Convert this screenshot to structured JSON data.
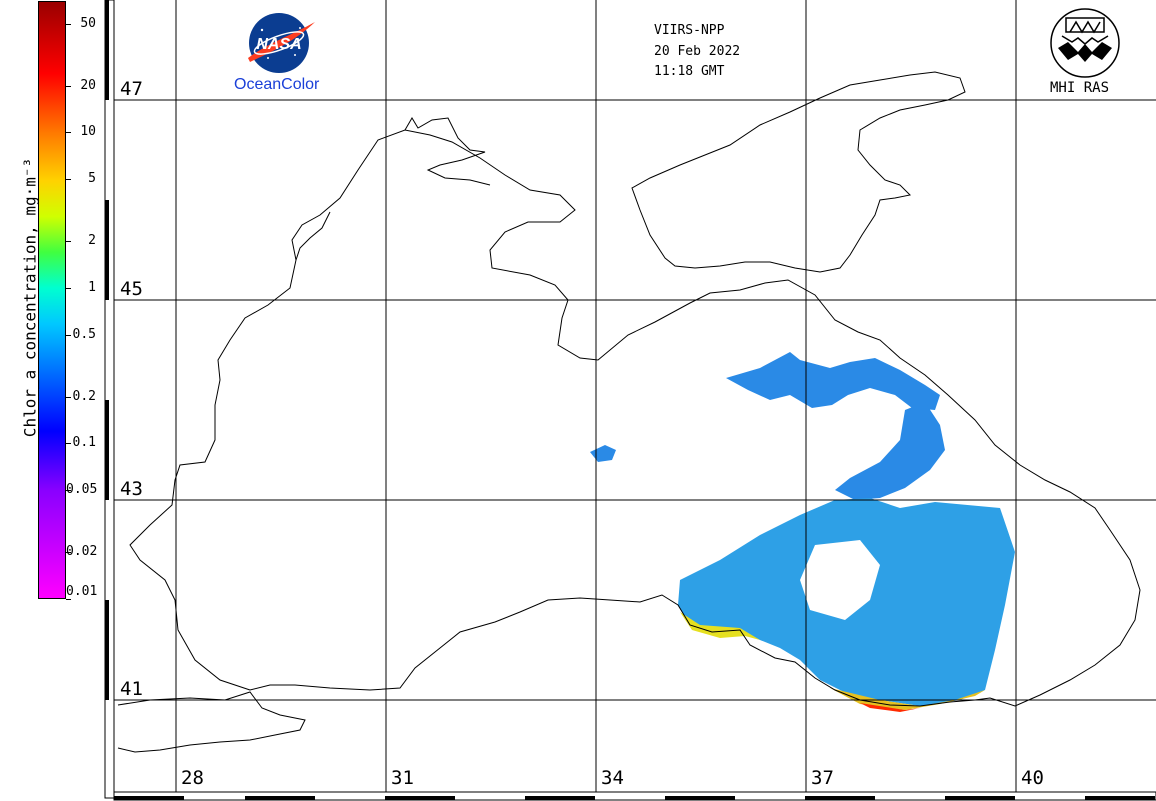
{
  "header": {
    "satellite": "VIIRS-NPP",
    "date": "20 Feb 2022",
    "time": "11:18 GMT"
  },
  "logos": {
    "nasa_label": "NASA",
    "oceancolor_label": "OceanColor",
    "mhi_label": "MHI RAS"
  },
  "colorbar": {
    "title": "Chlor_a concentration, mg·m⁻³",
    "ticks": [
      "50",
      "20",
      "10",
      "5",
      "2",
      "1",
      "0.5",
      "0.2",
      "0.1",
      "0.05",
      "0.02",
      "0.01"
    ]
  },
  "map": {
    "latitudes": [
      "47",
      "45",
      "43",
      "41"
    ],
    "longitudes": [
      "28",
      "31",
      "34",
      "37",
      "40"
    ],
    "colors": {
      "land": "#ffffff",
      "coast": "#000000",
      "chl_low": "#1f7fe0",
      "chl_mid": "#2fb0e0",
      "chl_high": "#e0e020",
      "chl_max": "#ff2000"
    }
  }
}
